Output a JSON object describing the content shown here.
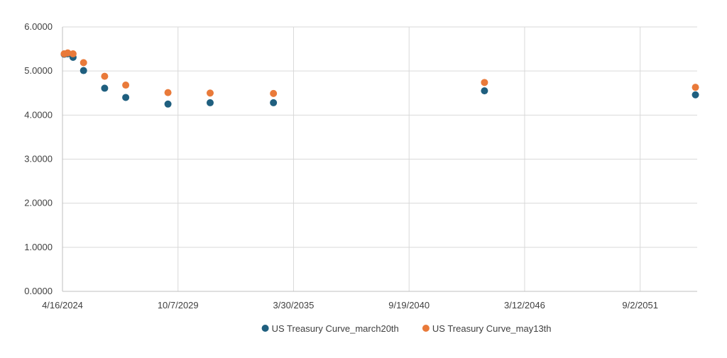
{
  "chart_data": {
    "type": "scatter",
    "title": "",
    "xlabel": "",
    "ylabel": "",
    "x_axis_kind": "date",
    "xlim": [
      "2024-04-16",
      "2054-05-16"
    ],
    "ylim": [
      0,
      6
    ],
    "x_ticks": [
      {
        "date": "2024-04-16",
        "label": "4/16/2024"
      },
      {
        "date": "2029-10-07",
        "label": "10/7/2029"
      },
      {
        "date": "2035-03-30",
        "label": "3/30/2035"
      },
      {
        "date": "2040-09-19",
        "label": "9/19/2040"
      },
      {
        "date": "2046-03-12",
        "label": "3/12/2046"
      },
      {
        "date": "2051-09-02",
        "label": "9/2/2051"
      }
    ],
    "y_ticks": [
      {
        "value": 0,
        "label": "0.0000"
      },
      {
        "value": 1,
        "label": "1.0000"
      },
      {
        "value": 2,
        "label": "2.0000"
      },
      {
        "value": 3,
        "label": "3.0000"
      },
      {
        "value": 4,
        "label": "4.0000"
      },
      {
        "value": 5,
        "label": "5.0000"
      },
      {
        "value": 6,
        "label": "6.0000"
      }
    ],
    "grid": true,
    "legend_position": "bottom",
    "series": [
      {
        "name": "US Treasury Curve_march20th",
        "color": "#1f5f7f",
        "points": [
          {
            "x": "2024-05-16",
            "y": 5.38
          },
          {
            "x": "2024-07-16",
            "y": 5.39
          },
          {
            "x": "2024-10-16",
            "y": 5.31
          },
          {
            "x": "2025-04-16",
            "y": 5.01
          },
          {
            "x": "2026-04-16",
            "y": 4.61
          },
          {
            "x": "2027-04-16",
            "y": 4.4
          },
          {
            "x": "2029-04-16",
            "y": 4.25
          },
          {
            "x": "2031-04-16",
            "y": 4.28
          },
          {
            "x": "2034-04-16",
            "y": 4.28
          },
          {
            "x": "2044-04-16",
            "y": 4.55
          },
          {
            "x": "2054-04-16",
            "y": 4.46
          }
        ]
      },
      {
        "name": "US Treasury Curve_may13th",
        "color": "#e97a3a",
        "points": [
          {
            "x": "2024-05-16",
            "y": 5.39
          },
          {
            "x": "2024-07-16",
            "y": 5.41
          },
          {
            "x": "2024-10-16",
            "y": 5.39
          },
          {
            "x": "2025-04-16",
            "y": 5.19
          },
          {
            "x": "2026-04-16",
            "y": 4.88
          },
          {
            "x": "2027-04-16",
            "y": 4.68
          },
          {
            "x": "2029-04-16",
            "y": 4.51
          },
          {
            "x": "2031-04-16",
            "y": 4.5
          },
          {
            "x": "2034-04-16",
            "y": 4.49
          },
          {
            "x": "2044-04-16",
            "y": 4.74
          },
          {
            "x": "2054-04-16",
            "y": 4.63
          }
        ]
      }
    ]
  }
}
